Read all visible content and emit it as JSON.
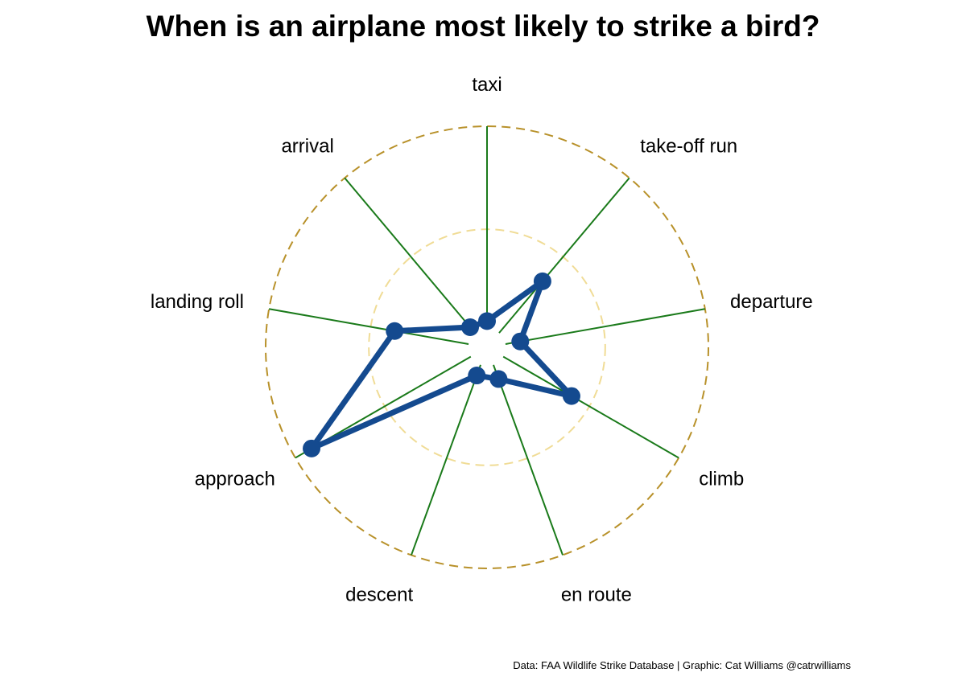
{
  "title": "When is an airplane most likely to strike a bird?",
  "caption": "Data: FAA Wildlife Strike Database | Graphic: Cat Williams @catrwilliams",
  "colors": {
    "spoke": "#1a7a1a",
    "outer_ring": "#b8912a",
    "inner_ring": "#f0dc96",
    "series": "#144a8f"
  },
  "chart_data": {
    "type": "radar",
    "categories": [
      "taxi",
      "take-off run",
      "departure",
      "climb",
      "en route",
      "descent",
      "approach",
      "landing roll",
      "arrival"
    ],
    "values": [
      2,
      18,
      4,
      21,
      4,
      3,
      49,
      20,
      2
    ],
    "rlim": [
      -5,
      54
    ],
    "gridlines": [
      {
        "value": 26.5,
        "style": "dashed-light"
      },
      {
        "value": 54,
        "style": "dashed-dark"
      }
    ],
    "legend": "none"
  }
}
